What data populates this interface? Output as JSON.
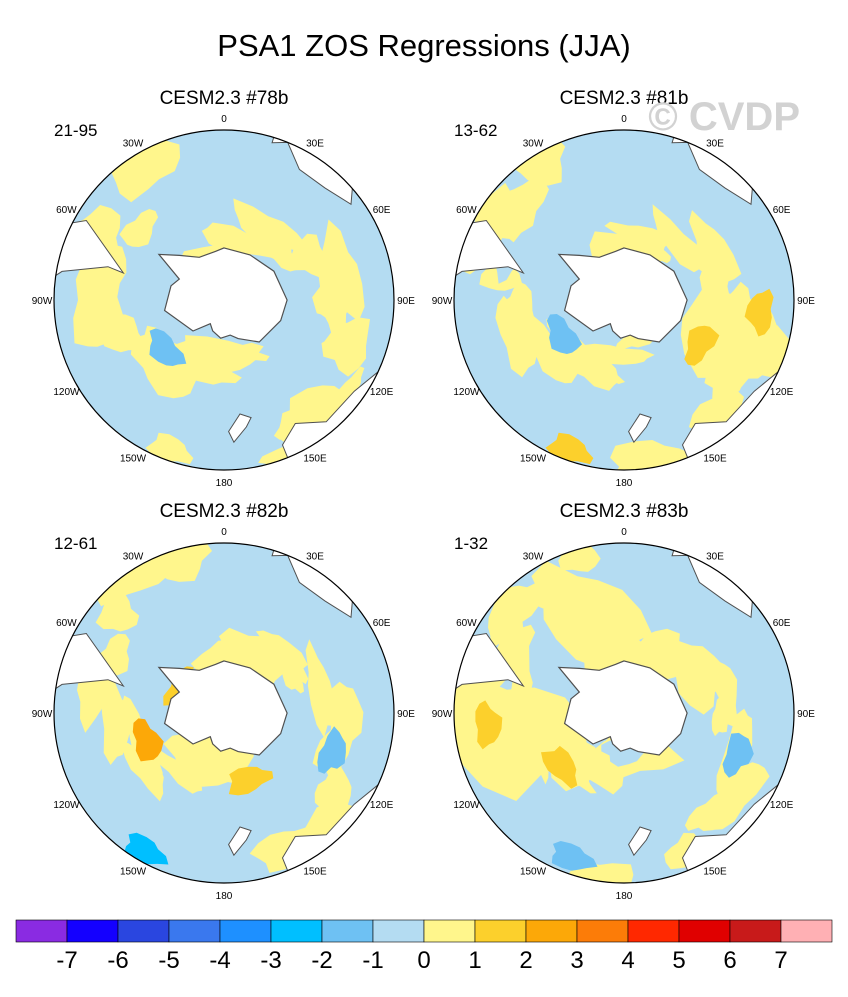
{
  "chart_data": {
    "type": "heatmap",
    "title": "PSA1 ZOS Regressions (JJA)",
    "watermark": "© CVDP",
    "projection": "south-polar-stereographic",
    "longitude_labels": [
      "0",
      "30E",
      "60E",
      "90E",
      "120E",
      "150E",
      "180",
      "150W",
      "120W",
      "90W",
      "60W",
      "30W"
    ],
    "panels": [
      {
        "name": "CESM2.3 #78b",
        "years": "21-95",
        "dominant_sign": "mixed",
        "features": [
          {
            "label": "-2",
            "lon": 230,
            "colat": 28
          },
          {
            "label": "-1",
            "lon": 110,
            "colat": 35
          },
          {
            "label": "1",
            "lon": 310,
            "colat": 40
          },
          {
            "label": "1",
            "lon": 150,
            "colat": 52
          },
          {
            "label": "1",
            "lon": 200,
            "colat": 58
          }
        ]
      },
      {
        "name": "CESM2.3 #81b",
        "years": "13-62",
        "dominant_sign": "positive-east",
        "features": [
          {
            "label": "-2",
            "lon": 240,
            "colat": 26
          },
          {
            "label": "2",
            "lon": 120,
            "colat": 32
          },
          {
            "label": "2",
            "lon": 95,
            "colat": 50
          },
          {
            "label": "2",
            "lon": 200,
            "colat": 58
          },
          {
            "label": "-1",
            "lon": 290,
            "colat": 45
          }
        ]
      },
      {
        "name": "CESM2.3 #82b",
        "years": "12-61",
        "dominant_sign": "mixed",
        "features": [
          {
            "label": "3",
            "lon": 250,
            "colat": 30
          },
          {
            "label": "2",
            "lon": 300,
            "colat": 18
          },
          {
            "label": "2",
            "lon": 160,
            "colat": 26
          },
          {
            "label": "-3",
            "lon": 210,
            "colat": 58
          },
          {
            "label": "-2",
            "lon": 110,
            "colat": 42
          }
        ]
      },
      {
        "name": "CESM2.3 #83b",
        "years": "1-32",
        "dominant_sign": "positive-west",
        "features": [
          {
            "label": "2",
            "lon": 265,
            "colat": 50
          },
          {
            "label": "2",
            "lon": 230,
            "colat": 30
          },
          {
            "label": "-2",
            "lon": 200,
            "colat": 56
          },
          {
            "label": "-1",
            "lon": 180,
            "colat": 14
          },
          {
            "label": "-2",
            "lon": 110,
            "colat": 44
          }
        ]
      }
    ],
    "colorbar": {
      "labels": [
        "-7",
        "-6",
        "-5",
        "-4",
        "-3",
        "-2",
        "-1",
        "0",
        "1",
        "2",
        "3",
        "4",
        "5",
        "6",
        "7"
      ],
      "colors": [
        "#8a2be2",
        "#1400ff",
        "#2a46e0",
        "#3a78ee",
        "#1e90ff",
        "#00bfff",
        "#6ec1f3",
        "#b4dcf2",
        "#fff68c",
        "#fcd02c",
        "#fca808",
        "#fc7c08",
        "#ff2800",
        "#e00000",
        "#c81a1a",
        "#ffb0b4"
      ],
      "range": [
        -7,
        7
      ]
    }
  },
  "colors": {
    "land": "#ffffff",
    "coast": "#505050",
    "neg1": "#b4dcf2",
    "pos1": "#fff68c"
  }
}
